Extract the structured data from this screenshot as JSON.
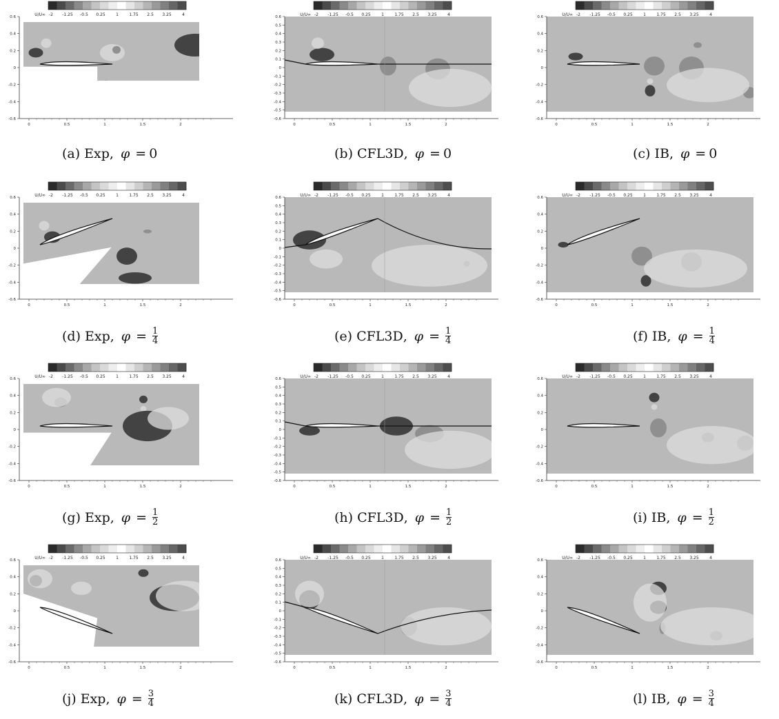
{
  "colorbar": {
    "label": "U/U∞",
    "ticks": [
      "-2",
      "-1.25",
      "-0.5",
      "0.25",
      "1",
      "1.75",
      "2.5",
      "3.25",
      "4"
    ],
    "levels": [
      "#2a2a2a",
      "#4a4a4a",
      "#6a6a6a",
      "#8a8a8a",
      "#a8a8a8",
      "#c4c4c4",
      "#dadada",
      "#eeeeee",
      "#ffffff",
      "#e6e6e6",
      "#cfcfcf",
      "#b5b5b5",
      "#9a9a9a",
      "#808080",
      "#666666",
      "#4d4d4d"
    ]
  },
  "axes": {
    "exp": {
      "xticks": [
        "0",
        "0.5",
        "1",
        "1.5",
        "2"
      ],
      "yticks": [
        "0.6",
        "0.4",
        "0.2",
        "0",
        "-0.2",
        "-0.4",
        "-0.6"
      ]
    },
    "cfl": {
      "xticks": [
        "0",
        "0.5",
        "1",
        "1.5",
        "2"
      ],
      "yticks": [
        "0.6",
        "0.5",
        "0.4",
        "0.3",
        "0.2",
        "0.1",
        "0",
        "-0.1",
        "-0.2",
        "-0.3",
        "-0.4",
        "-0.5",
        "-0.6"
      ]
    },
    "ib": {
      "xticks": [
        "0",
        "0.5",
        "1",
        "1.5",
        "2"
      ],
      "yticks": [
        "0.6",
        "0.4",
        "0.2",
        "0",
        "-0.2",
        "-0.4",
        "-0.6"
      ]
    }
  },
  "colors": {
    "field": "#b9b9b9",
    "light": "#dedede",
    "mid": "#8c8c8c",
    "dark": "#3c3c3c",
    "frame": "#333333"
  },
  "panels": [
    {
      "id": "a",
      "caption": {
        "letter": "(a)",
        "method": "Exp",
        "phi": "0"
      },
      "kind": "exp",
      "row": 0,
      "col": 0,
      "angle": 0
    },
    {
      "id": "b",
      "caption": {
        "letter": "(b)",
        "method": "CFL3D",
        "phi": "0"
      },
      "kind": "cfl",
      "row": 0,
      "col": 1,
      "angle": 0
    },
    {
      "id": "c",
      "caption": {
        "letter": "(c)",
        "method": "IB",
        "phi": "0"
      },
      "kind": "ib",
      "row": 0,
      "col": 2,
      "angle": 0
    },
    {
      "id": "d",
      "caption": {
        "letter": "(d)",
        "method": "Exp",
        "num": "1",
        "den": "4"
      },
      "kind": "exp",
      "row": 1,
      "col": 0,
      "angle": 1
    },
    {
      "id": "e",
      "caption": {
        "letter": "(e)",
        "method": "CFL3D",
        "num": "1",
        "den": "4"
      },
      "kind": "cfl",
      "row": 1,
      "col": 1,
      "angle": 1
    },
    {
      "id": "f",
      "caption": {
        "letter": "(f)",
        "method": "IB",
        "num": "1",
        "den": "4"
      },
      "kind": "ib",
      "row": 1,
      "col": 2,
      "angle": 1
    },
    {
      "id": "g",
      "caption": {
        "letter": "(g)",
        "method": "Exp",
        "num": "1",
        "den": "2"
      },
      "kind": "exp",
      "row": 2,
      "col": 0,
      "angle": 0
    },
    {
      "id": "h",
      "caption": {
        "letter": "(h)",
        "method": "CFL3D",
        "num": "1",
        "den": "2"
      },
      "kind": "cfl",
      "row": 2,
      "col": 1,
      "angle": 0
    },
    {
      "id": "i",
      "caption": {
        "letter": "(i)",
        "method": "IB",
        "num": "1",
        "den": "2"
      },
      "kind": "ib",
      "row": 2,
      "col": 2,
      "angle": 0
    },
    {
      "id": "j",
      "caption": {
        "letter": "(j)",
        "method": "Exp",
        "num": "3",
        "den": "4"
      },
      "kind": "exp",
      "row": 3,
      "col": 0,
      "angle": -1
    },
    {
      "id": "k",
      "caption": {
        "letter": "(k)",
        "method": "CFL3D",
        "num": "3",
        "den": "4"
      },
      "kind": "cfl",
      "row": 3,
      "col": 1,
      "angle": -1
    },
    {
      "id": "l",
      "caption": {
        "letter": "(l)",
        "method": "IB",
        "num": "3",
        "den": "4"
      },
      "kind": "ib",
      "row": 3,
      "col": 2,
      "angle": -1
    }
  ]
}
